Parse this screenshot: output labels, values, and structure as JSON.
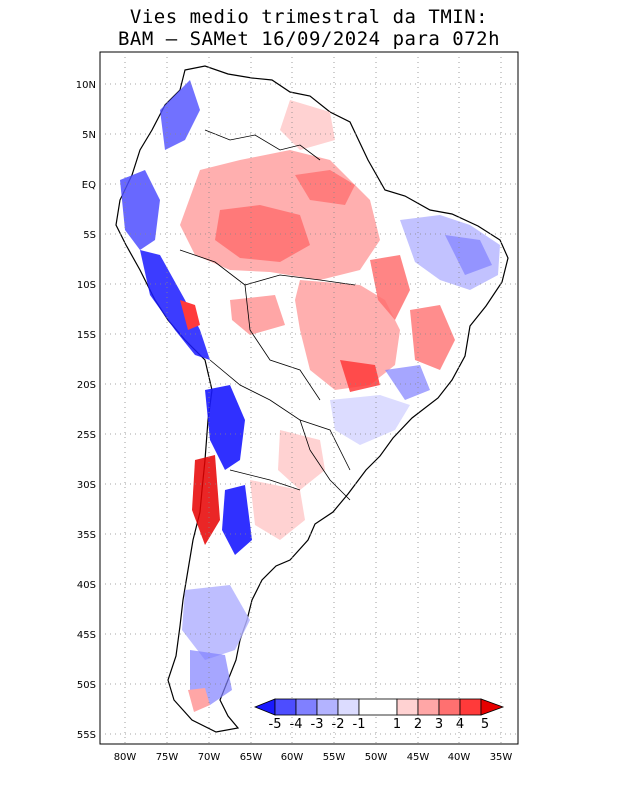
{
  "title": {
    "line1": "Vies medio trimestral da TMIN:",
    "line2": "BAM – SAMet 16/09/2024  para 072h"
  },
  "map": {
    "lat_ticks": [
      "10N",
      "5N",
      "EQ",
      "5S",
      "10S",
      "15S",
      "20S",
      "25S",
      "30S",
      "35S",
      "40S",
      "45S",
      "50S",
      "55S"
    ],
    "lon_ticks": [
      "80W",
      "75W",
      "70W",
      "65W",
      "60W",
      "55W",
      "50W",
      "45W",
      "40W",
      "35W"
    ],
    "grid": "dotted",
    "land_color": "#ffffff",
    "ocean_color": "#ffffff"
  },
  "colorbar": {
    "labels": [
      "-5",
      "-4",
      "-3",
      "-2",
      "-1",
      "1",
      "2",
      "3",
      "4",
      "5"
    ],
    "colors": [
      "#1a1aff",
      "#4d4dff",
      "#8080ff",
      "#b3b3ff",
      "#dcdcff",
      "#ffffff",
      "#ffd2d2",
      "#ffa6a6",
      "#ff7070",
      "#ff3a3a",
      "#e60000"
    ],
    "position": "bottom-right"
  }
}
